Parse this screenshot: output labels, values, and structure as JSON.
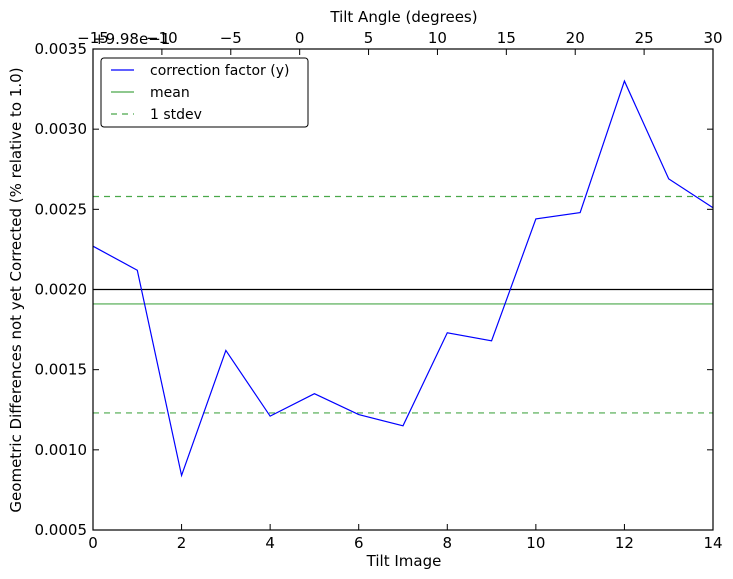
{
  "chart_data": {
    "type": "line",
    "x_bottom": {
      "label": "Tilt Image",
      "lim": [
        0,
        14
      ],
      "ticks": [
        "0",
        "2",
        "4",
        "6",
        "8",
        "10",
        "12",
        "14"
      ]
    },
    "x_top": {
      "label": "Tilt Angle (degrees)",
      "lim": [
        -15,
        30
      ],
      "ticks": [
        "−15",
        "−10",
        "−5",
        "0",
        "5",
        "10",
        "15",
        "20",
        "25",
        "30"
      ],
      "offset_text": "+9.98e−1"
    },
    "y": {
      "label": "Geometric Differences not yet Corrected (% relative to 1.0)",
      "lim": [
        0.0005,
        0.0035
      ],
      "ticks": [
        "0.0005",
        "0.0010",
        "0.0015",
        "0.0020",
        "0.0025",
        "0.0030",
        "0.0035"
      ]
    },
    "series": [
      {
        "name": "correction factor (y)",
        "color": "#0000ff",
        "style": "solid",
        "x": [
          0,
          1,
          2,
          3,
          4,
          5,
          6,
          7,
          8,
          9,
          10,
          11,
          12,
          13,
          14
        ],
        "y": [
          0.00227,
          0.00212,
          0.00084,
          0.00162,
          0.00121,
          0.00135,
          0.00122,
          0.00115,
          0.00173,
          0.00168,
          0.00244,
          0.00248,
          0.0033,
          0.00269,
          0.00251
        ]
      },
      {
        "name": "mean",
        "color": "#4aa84a",
        "style": "solid",
        "y_const": 0.00191
      },
      {
        "name": "1 stdev",
        "color": "#4aa84a",
        "style": "dashed",
        "y_const": [
          0.00258,
          0.00123
        ]
      }
    ],
    "reference_line": {
      "y": 0.002,
      "color": "#000000"
    },
    "grid": false,
    "legend_position": "upper-left"
  }
}
